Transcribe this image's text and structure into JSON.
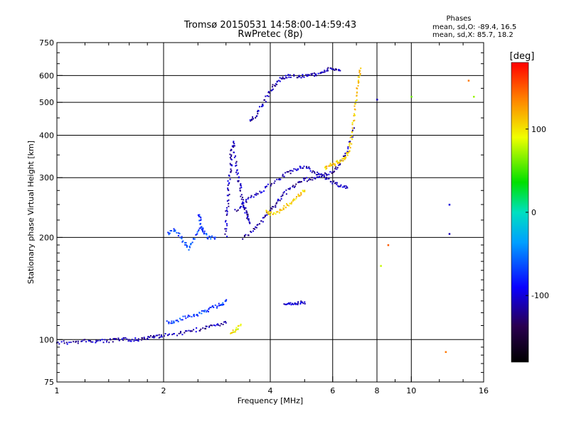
{
  "header": {
    "title_line1": "Tromsø 20150531 14:58:00-14:59:43",
    "title_line2": "RwPretec (8p)",
    "phases_label": "Phases",
    "phases_o": "mean, sd,O: -89.4, 16.5",
    "phases_x": "mean, sd,X: 85.7, 18.2"
  },
  "chart_data": {
    "type": "scatter",
    "xlabel": "Frequency [MHz]",
    "ylabel": "Stationary phase Virtual Height [km]",
    "x_scale": "log",
    "y_scale": "log",
    "xlim": [
      1,
      16
    ],
    "ylim": [
      75,
      750
    ],
    "x_ticks": [
      1,
      2,
      4,
      6,
      8,
      10,
      16
    ],
    "x_tick_labels": [
      "1",
      "2",
      "4",
      "6",
      "8",
      "10",
      "16"
    ],
    "y_ticks": [
      75,
      100,
      200,
      300,
      400,
      500,
      600,
      750
    ],
    "y_tick_labels": [
      "75",
      "100",
      "200",
      "300",
      "400",
      "500",
      "600",
      "750"
    ],
    "grid_x": [
      2,
      4,
      6,
      8,
      10
    ],
    "grid_y": [
      100,
      200,
      300,
      400,
      500,
      600
    ],
    "colorbar": {
      "label": "[deg]",
      "range": [
        -180,
        180
      ],
      "ticks": [
        -100,
        0,
        100
      ],
      "tick_labels": [
        "-100",
        "0",
        "100"
      ]
    },
    "traces": [
      {
        "phase": -110,
        "points": [
          [
            1.0,
            98
          ],
          [
            1.1,
            98
          ],
          [
            1.2,
            99
          ],
          [
            1.3,
            99
          ],
          [
            1.4,
            99
          ],
          [
            1.5,
            100
          ],
          [
            1.6,
            100
          ],
          [
            1.7,
            100
          ],
          [
            1.8,
            101
          ],
          [
            1.9,
            102
          ],
          [
            2.0,
            103
          ],
          [
            2.2,
            104
          ],
          [
            2.4,
            106
          ],
          [
            2.6,
            108
          ],
          [
            2.8,
            110
          ],
          [
            3.0,
            112
          ]
        ]
      },
      {
        "phase": -70,
        "points": [
          [
            2.05,
            112
          ],
          [
            2.15,
            113
          ],
          [
            2.3,
            116
          ],
          [
            2.45,
            118
          ],
          [
            2.6,
            121
          ],
          [
            2.75,
            124
          ],
          [
            2.9,
            127
          ],
          [
            3.0,
            130
          ]
        ]
      },
      {
        "phase": -65,
        "points": [
          [
            2.05,
            205
          ],
          [
            2.15,
            210
          ],
          [
            2.25,
            198
          ],
          [
            2.35,
            185
          ],
          [
            2.45,
            200
          ],
          [
            2.55,
            215
          ],
          [
            2.65,
            200
          ],
          [
            2.8,
            200
          ]
        ]
      },
      {
        "phase": -75,
        "points": [
          [
            2.52,
            235
          ],
          [
            2.55,
            220
          ],
          [
            2.6,
            205
          ]
        ]
      },
      {
        "phase": -110,
        "points": [
          [
            3.0,
            200
          ],
          [
            3.0,
            230
          ],
          [
            3.05,
            260
          ],
          [
            3.05,
            290
          ],
          [
            3.1,
            320
          ],
          [
            3.1,
            350
          ],
          [
            3.15,
            385
          ],
          [
            3.2,
            330
          ],
          [
            3.25,
            300
          ],
          [
            3.3,
            280
          ],
          [
            3.35,
            250
          ],
          [
            3.4,
            240
          ],
          [
            3.45,
            230
          ],
          [
            3.5,
            220
          ]
        ]
      },
      {
        "phase": -115,
        "points": [
          [
            3.35,
            200
          ],
          [
            3.6,
            210
          ],
          [
            3.8,
            225
          ],
          [
            4.0,
            240
          ],
          [
            4.2,
            255
          ],
          [
            4.4,
            270
          ],
          [
            4.7,
            285
          ],
          [
            5.0,
            295
          ],
          [
            5.3,
            300
          ],
          [
            5.6,
            305
          ],
          [
            6.0,
            310
          ],
          [
            6.3,
            330
          ],
          [
            6.6,
            360
          ],
          [
            6.9,
            420
          ]
        ]
      },
      {
        "phase": -110,
        "points": [
          [
            3.2,
            240
          ],
          [
            3.4,
            255
          ],
          [
            3.6,
            265
          ],
          [
            3.9,
            280
          ],
          [
            4.2,
            295
          ],
          [
            4.5,
            310
          ],
          [
            4.8,
            320
          ],
          [
            5.1,
            320
          ],
          [
            5.4,
            310
          ],
          [
            5.7,
            300
          ],
          [
            6.0,
            290
          ],
          [
            6.3,
            285
          ],
          [
            6.6,
            280
          ]
        ]
      },
      {
        "phase": -110,
        "points": [
          [
            3.5,
            440
          ],
          [
            3.65,
            460
          ],
          [
            3.8,
            490
          ],
          [
            3.95,
            530
          ],
          [
            4.1,
            560
          ],
          [
            4.3,
            590
          ],
          [
            4.5,
            600
          ],
          [
            4.8,
            595
          ],
          [
            5.1,
            600
          ],
          [
            5.4,
            605
          ],
          [
            5.7,
            620
          ],
          [
            6.0,
            630
          ],
          [
            6.3,
            620
          ]
        ]
      },
      {
        "phase": 110,
        "points": [
          [
            3.9,
            240
          ],
          [
            4.0,
            235
          ],
          [
            4.2,
            238
          ],
          [
            4.4,
            245
          ],
          [
            4.6,
            255
          ],
          [
            4.8,
            265
          ],
          [
            5.0,
            275
          ]
        ]
      },
      {
        "phase": 110,
        "points": [
          [
            5.7,
            320
          ],
          [
            5.9,
            325
          ],
          [
            6.1,
            330
          ],
          [
            6.3,
            335
          ],
          [
            6.5,
            345
          ],
          [
            6.7,
            360
          ],
          [
            6.8,
            400
          ],
          [
            6.9,
            460
          ],
          [
            7.0,
            520
          ],
          [
            7.1,
            580
          ],
          [
            7.2,
            630
          ]
        ]
      },
      {
        "phase": 95,
        "points": [
          [
            3.1,
            105
          ],
          [
            3.2,
            107
          ],
          [
            3.3,
            110
          ]
        ]
      },
      {
        "phase": -100,
        "points": [
          [
            4.4,
            128
          ],
          [
            4.6,
            127
          ],
          [
            4.8,
            128
          ],
          [
            5.0,
            129
          ]
        ]
      }
    ],
    "outliers": [
      {
        "x": 8.2,
        "y": 165,
        "phase": 80
      },
      {
        "x": 8.6,
        "y": 190,
        "phase": 150
      },
      {
        "x": 10.0,
        "y": 520,
        "phase": 60
      },
      {
        "x": 12.5,
        "y": 92,
        "phase": 140
      },
      {
        "x": 12.8,
        "y": 250,
        "phase": -100
      },
      {
        "x": 12.8,
        "y": 205,
        "phase": -110
      },
      {
        "x": 14.5,
        "y": 580,
        "phase": 140
      },
      {
        "x": 15.0,
        "y": 520,
        "phase": 70
      },
      {
        "x": 8.0,
        "y": 510,
        "phase": -110
      }
    ]
  }
}
